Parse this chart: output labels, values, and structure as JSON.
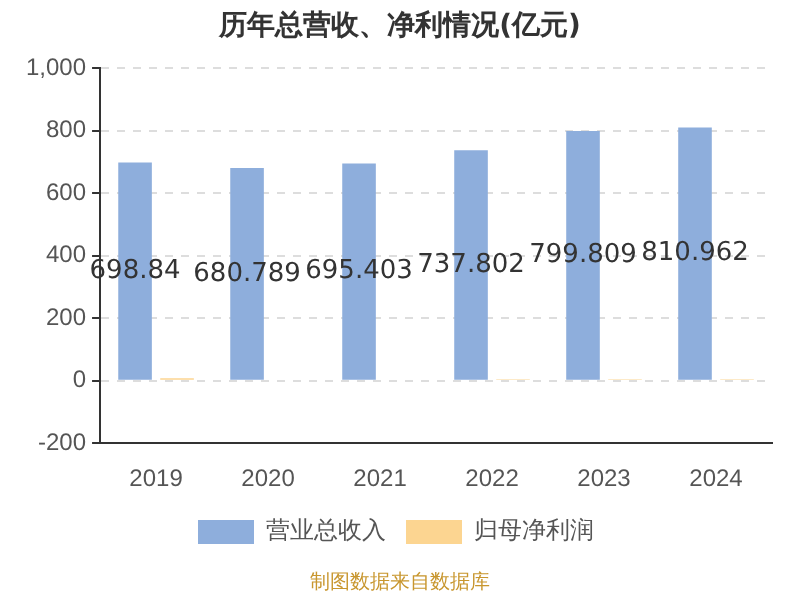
{
  "chart_data": {
    "type": "bar",
    "title": "历年总营收、净利情况(亿元)",
    "categories": [
      "2019",
      "2020",
      "2021",
      "2022",
      "2023",
      "2024"
    ],
    "series": [
      {
        "name": "营业总收入",
        "color": "#8eaedc",
        "values": [
          698.84,
          680.789,
          695.403,
          737.802,
          799.809,
          810.962
        ],
        "value_labels": [
          "698.84",
          "680.789",
          "695.403",
          "737.802",
          "799.809",
          "810.962"
        ]
      },
      {
        "name": "归母净利润",
        "color": "#fcd591",
        "values": [
          8,
          0,
          null,
          5,
          5,
          5
        ]
      }
    ],
    "ylim": [
      -200,
      1000
    ],
    "yticks": [
      -200,
      0,
      200,
      400,
      600,
      800,
      {
        "value": 1000,
        "label": "1,000"
      }
    ],
    "grid": "y",
    "legend": "bottom",
    "annotations": [
      "制图数据来自数据库"
    ]
  }
}
